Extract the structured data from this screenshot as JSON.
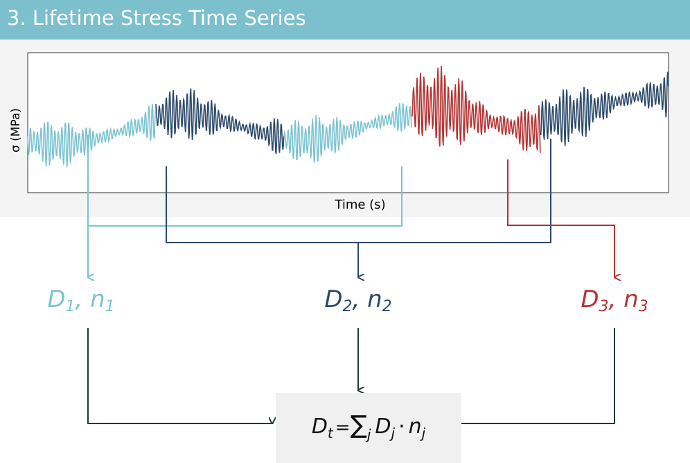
{
  "header": {
    "title": "3. Lifetime Stress Time Series"
  },
  "plot": {
    "y_label": "σ (MPa)",
    "x_label": "Time (s)"
  },
  "separator": ", ",
  "nodes": [
    {
      "d": "D",
      "d_sub": "1",
      "n": "n",
      "n_sub": "1"
    },
    {
      "d": "D",
      "d_sub": "2",
      "n": "n",
      "n_sub": "2"
    },
    {
      "d": "D",
      "d_sub": "3",
      "n": "n",
      "n_sub": "3"
    }
  ],
  "formula": {
    "lhs": "D",
    "lhs_sub": "t",
    "equals": "=",
    "sum": "∑",
    "sum_sub": "j",
    "term1": "D",
    "term1_sub": "j",
    "dot": "·",
    "term2": "n",
    "term2_sub": "j"
  }
}
